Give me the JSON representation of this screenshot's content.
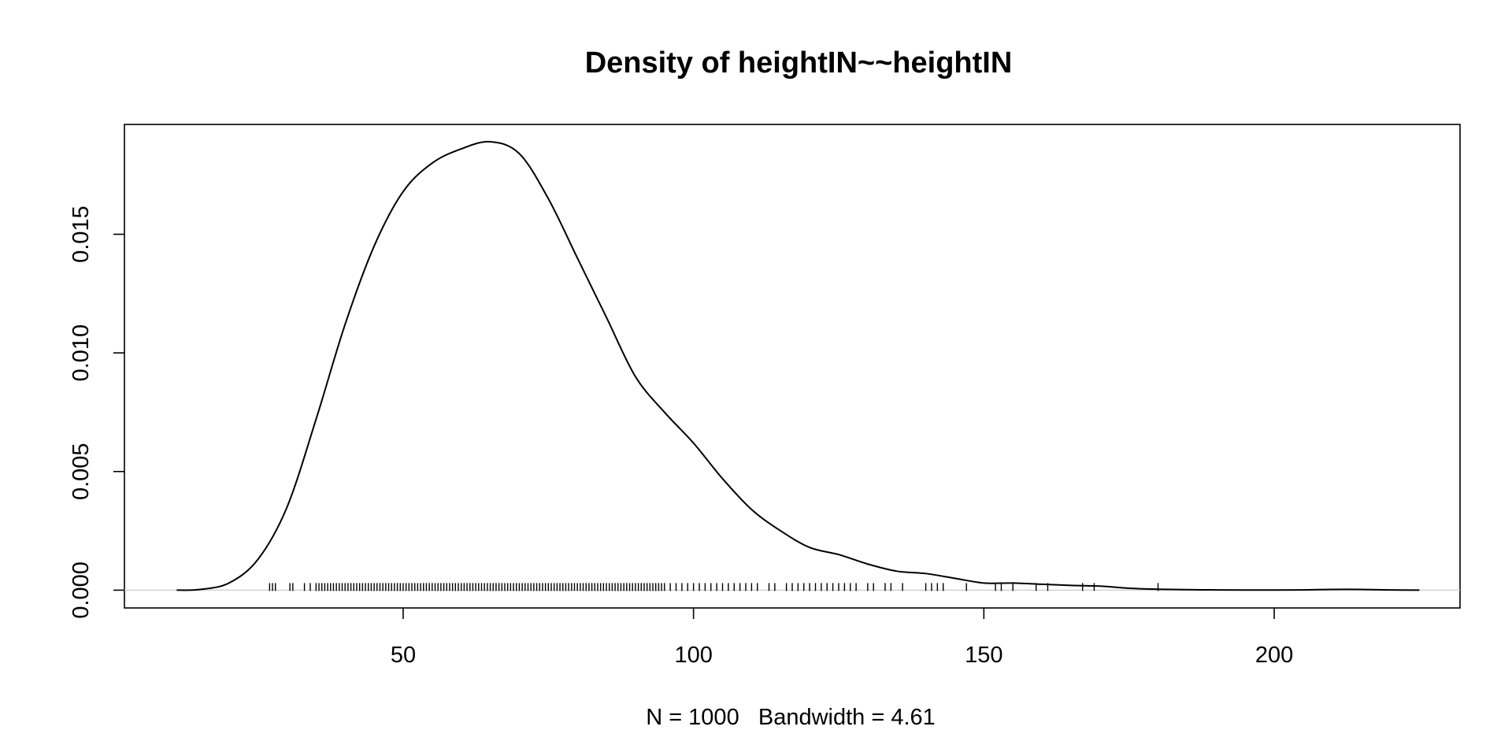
{
  "chart_data": {
    "type": "line",
    "title": "Density of heightIN~~heightIN",
    "xlabel": "N = 1000   Bandwidth = 4.61",
    "ylabel": "",
    "xlim": [
      2,
      232
    ],
    "ylim": [
      -0.00075,
      0.01963
    ],
    "x_ticks": [
      50,
      100,
      150,
      200
    ],
    "x_tick_labels": [
      "50",
      "100",
      "150",
      "200"
    ],
    "y_ticks": [
      0.0,
      0.005,
      0.01,
      0.015
    ],
    "y_tick_labels": [
      "0.000",
      "0.005",
      "0.010",
      "0.015"
    ],
    "grid": false,
    "zero_line": true,
    "series": [
      {
        "x": [
          11,
          15,
          20,
          25,
          30,
          35,
          40,
          45,
          50,
          55,
          60,
          65,
          70,
          75,
          80,
          85,
          90,
          95,
          100,
          105,
          110,
          115,
          120,
          125,
          130,
          135,
          140,
          145,
          150,
          155,
          160,
          165,
          170,
          175,
          180,
          185,
          190,
          195,
          200,
          205,
          210,
          215,
          220,
          225
        ],
        "y": [
          0.0,
          3e-05,
          0.0003,
          0.0013,
          0.0035,
          0.0072,
          0.0112,
          0.0145,
          0.0168,
          0.018,
          0.0186,
          0.0189,
          0.0184,
          0.0165,
          0.014,
          0.0115,
          0.009,
          0.0075,
          0.0062,
          0.0047,
          0.0034,
          0.0025,
          0.0018,
          0.0015,
          0.0011,
          0.0008,
          0.0007,
          0.0005,
          0.0003,
          0.0003,
          0.00025,
          0.0002,
          0.00017,
          8e-05,
          4e-05,
          2e-05,
          1e-05,
          5e-06,
          5e-06,
          1e-05,
          3e-05,
          3e-05,
          1e-05,
          0.0
        ]
      }
    ],
    "rug": [
      27,
      27.5,
      28,
      30.5,
      31,
      33,
      34,
      35,
      35.5,
      36,
      36.5,
      37,
      37.5,
      38,
      38.5,
      39,
      39.5,
      40,
      40.5,
      41,
      41.5,
      42,
      42.5,
      43,
      43.5,
      44,
      44.5,
      45,
      45.5,
      46,
      46.5,
      47,
      47.5,
      48,
      48.5,
      49,
      49.5,
      50,
      50.5,
      51,
      51.5,
      52,
      52.5,
      53,
      53.5,
      54,
      54.5,
      55,
      55.5,
      56,
      56.5,
      57,
      57.5,
      58,
      58.5,
      59,
      59.5,
      60,
      60.5,
      61,
      61.5,
      62,
      62.5,
      63,
      63.5,
      64,
      64.5,
      65,
      65.5,
      66,
      66.5,
      67,
      67.5,
      68,
      68.5,
      69,
      69.5,
      70,
      70.5,
      71,
      71.5,
      72,
      72.5,
      73,
      73.5,
      74,
      74.5,
      75,
      75.5,
      76,
      76.5,
      77,
      77.5,
      78,
      78.5,
      79,
      79.5,
      80,
      80.5,
      81,
      81.5,
      82,
      82.5,
      83,
      83.5,
      84,
      84.5,
      85,
      85.5,
      86,
      86.5,
      87,
      87.5,
      88,
      88.5,
      89,
      89.5,
      90,
      90.5,
      91,
      91.5,
      92,
      92.5,
      93,
      93.5,
      94,
      94.5,
      95,
      96,
      97,
      98,
      99,
      100,
      101,
      102,
      103,
      104,
      105,
      106,
      107,
      108,
      109,
      110,
      111,
      113,
      114,
      116,
      117,
      118,
      119,
      120,
      121,
      122,
      123,
      124,
      125,
      126,
      127,
      128,
      130,
      131,
      133,
      134,
      136,
      140,
      141,
      142,
      143,
      147,
      152,
      153,
      155,
      159,
      161,
      167,
      169,
      180
    ]
  }
}
